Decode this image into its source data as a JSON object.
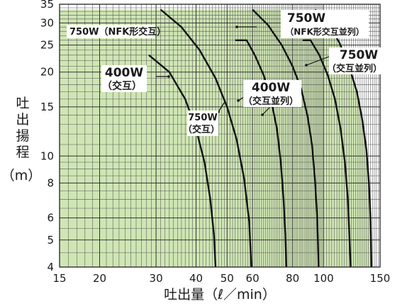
{
  "chart_data": {
    "type": "area",
    "title": "",
    "xlabel": "吐出量（ℓ／min）",
    "ylabel_chars": [
      "吐",
      "出",
      "揚",
      "程"
    ],
    "ylabel_unit": "（m）",
    "x_scale": "log",
    "y_scale": "log",
    "xlim": [
      15,
      150
    ],
    "ylim": [
      4,
      35
    ],
    "x_ticks": [
      15,
      20,
      30,
      40,
      50,
      60,
      80,
      100,
      150
    ],
    "y_ticks": [
      4,
      5,
      6,
      8,
      10,
      15,
      20,
      25,
      30,
      35
    ],
    "grid": true,
    "fill_color": "#cfe6b4",
    "line_color": "#111111",
    "series": [
      {
        "name": "400W（交互）",
        "points": [
          [
            15,
            23
          ],
          [
            28.5,
            23
          ],
          [
            33,
            20
          ],
          [
            37,
            16
          ],
          [
            40,
            12.5
          ],
          [
            42.5,
            9.5
          ],
          [
            44.3,
            7
          ],
          [
            45.5,
            5.2
          ],
          [
            46,
            4
          ]
        ]
      },
      {
        "name": "750W（交互）",
        "points": [
          [
            15,
            33.5
          ],
          [
            31,
            33.5
          ],
          [
            36,
            29
          ],
          [
            41,
            24
          ],
          [
            46,
            19
          ],
          [
            50,
            15
          ],
          [
            53.5,
            11.5
          ],
          [
            56.5,
            8.3
          ],
          [
            58.6,
            5.8
          ],
          [
            59.5,
            4
          ]
        ]
      },
      {
        "name": "400W（交互並列）",
        "points": [
          [
            15,
            23
          ],
          [
            53,
            26
          ],
          [
            57.5,
            26
          ],
          [
            61,
            23
          ],
          [
            65,
            19.5
          ],
          [
            68.5,
            16
          ],
          [
            71.5,
            12.5
          ],
          [
            73.5,
            9.5
          ],
          [
            75,
            7
          ],
          [
            76,
            5.2
          ],
          [
            76.5,
            4
          ]
        ]
      },
      {
        "name": "750W（NFK形交互）",
        "points": [
          [
            15,
            33.5
          ],
          [
            60,
            33.5
          ],
          [
            67,
            29.5
          ],
          [
            74,
            25
          ],
          [
            80,
            21
          ],
          [
            85,
            17.5
          ],
          [
            89,
            14
          ],
          [
            92,
            11
          ],
          [
            94,
            8.2
          ],
          [
            95.5,
            6
          ],
          [
            96.5,
            4
          ]
        ]
      },
      {
        "name": "750W（交互並列）",
        "points": [
          [
            15,
            33.5
          ],
          [
            86,
            26
          ],
          [
            91,
            26
          ],
          [
            97,
            23
          ],
          [
            103,
            19.5
          ],
          [
            108.5,
            16
          ],
          [
            113,
            12.5
          ],
          [
            116.5,
            9.5
          ],
          [
            119,
            7
          ],
          [
            120.5,
            5
          ],
          [
            121.5,
            4
          ]
        ]
      },
      {
        "name": "750W（NFK形交互並列）",
        "points": [
          [
            15,
            33.5
          ],
          [
            94,
            33.5
          ],
          [
            103,
            30
          ],
          [
            112,
            25.5
          ],
          [
            120,
            21
          ],
          [
            127,
            17
          ],
          [
            132,
            13.5
          ],
          [
            136,
            10.5
          ],
          [
            138.5,
            8
          ],
          [
            140,
            6
          ],
          [
            141,
            4
          ]
        ]
      }
    ],
    "annotations": [
      {
        "id": "nfk",
        "line1": "750W（NFK形交互）",
        "line2": ""
      },
      {
        "id": "w400",
        "line1": "400W",
        "line2": "（交互）"
      },
      {
        "id": "w750",
        "line1": "750W",
        "line2": "（交互）"
      },
      {
        "id": "w400p",
        "line1": "400W",
        "line2": "（交互並列）"
      },
      {
        "id": "w750nfkp",
        "line1": "750W",
        "line2": "（NFK形交互並列）"
      },
      {
        "id": "w750p",
        "line1": "750W",
        "line2": "（交互並列）"
      }
    ]
  }
}
